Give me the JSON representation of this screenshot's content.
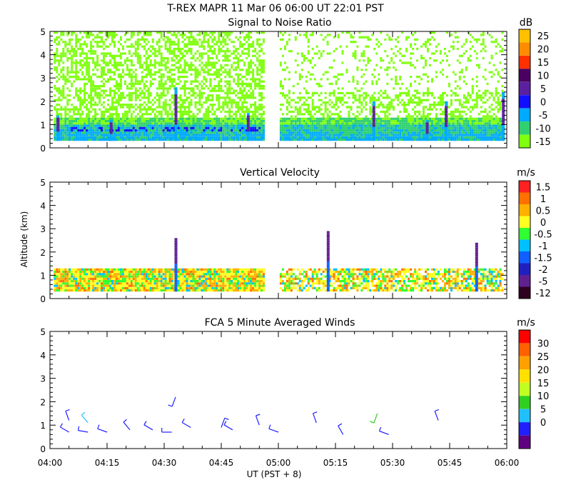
{
  "header": {
    "title": "T-REX   MAPR 11 Mar 06   06:00 UT   22:01   PST"
  },
  "xaxis": {
    "ticks": [
      "04:00",
      "04:15",
      "04:30",
      "04:45",
      "05:00",
      "05:15",
      "05:30",
      "05:45",
      "06:00"
    ],
    "label": "UT  (PST + 8)",
    "ylabel": "Altitude (km)"
  },
  "chart_data": [
    {
      "type": "heatmap",
      "title": "Signal to Noise Ratio",
      "unit": "dB",
      "x_range_min": [
        0,
        120
      ],
      "ylim": [
        0,
        5
      ],
      "yticks": [
        "0",
        "1",
        "2",
        "3",
        "4",
        "5"
      ],
      "data_gap_min": [
        56,
        60
      ],
      "colorbar": {
        "labels": [
          "25",
          "20",
          "15",
          "10",
          "5",
          "0",
          "-5",
          "-10",
          "-15"
        ],
        "colors": [
          "#ffc000",
          "#ff8c00",
          "#ff3000",
          "#4a0060",
          "#5a20a0",
          "#1010ff",
          "#00aaff",
          "#30d070",
          "#80ff10"
        ]
      },
      "columns": [
        {
          "t": 2,
          "top": 1.4
        },
        {
          "t": 16,
          "top": 1.2
        },
        {
          "t": 33,
          "top": 2.6
        },
        {
          "t": 52,
          "top": 1.5
        },
        {
          "t": 85,
          "top": 2.0
        },
        {
          "t": 104,
          "top": 2.0
        },
        {
          "t": 99,
          "top": 1.2
        },
        {
          "t": 119,
          "top": 2.4
        }
      ]
    },
    {
      "type": "heatmap",
      "title": "Vertical Velocity",
      "unit": "m/s",
      "x_range_min": [
        0,
        120
      ],
      "ylim": [
        0,
        5
      ],
      "yticks": [
        "0",
        "1",
        "2",
        "3",
        "4",
        "5"
      ],
      "data_gap_min": [
        56,
        60
      ],
      "colorbar": {
        "labels": [
          "1.5",
          "1",
          "0.5",
          "0",
          "-0.5",
          "-1",
          "-1.5",
          "-2",
          "-5",
          "-12"
        ],
        "colors": [
          "#ff2020",
          "#ff7000",
          "#ffb000",
          "#ffff20",
          "#30ff30",
          "#00c0ff",
          "#1060ff",
          "#2020c0",
          "#602090",
          "#300020"
        ]
      },
      "columns": [
        {
          "t": 33,
          "top": 2.6
        },
        {
          "t": 73,
          "top": 2.9
        },
        {
          "t": 112,
          "top": 2.4
        }
      ]
    },
    {
      "type": "scatter",
      "title": "FCA 5 Minute Averaged Winds",
      "unit": "m/s",
      "x_range_min": [
        0,
        120
      ],
      "ylim": [
        0,
        5
      ],
      "yticks": [
        "0",
        "1",
        "2",
        "3",
        "4",
        "5"
      ],
      "colorbar": {
        "labels": [
          "30",
          "25",
          "20",
          "15",
          "10",
          "5",
          "0"
        ],
        "colors": [
          "#ff0000",
          "#ff6000",
          "#ffa000",
          "#ffe000",
          "#c0ff20",
          "#30d020",
          "#20c0ff",
          "#2020ff",
          "#600080"
        ]
      },
      "barbs": [
        {
          "t": 5,
          "alt": 1.2,
          "dir": 340,
          "speed": 6
        },
        {
          "t": 5,
          "alt": 0.7,
          "dir": 300,
          "speed": 5
        },
        {
          "t": 10,
          "alt": 1.1,
          "dir": 320,
          "speed": 10
        },
        {
          "t": 10,
          "alt": 0.7,
          "dir": 280,
          "speed": 4
        },
        {
          "t": 15,
          "alt": 0.7,
          "dir": 290,
          "speed": 5
        },
        {
          "t": 21,
          "alt": 0.8,
          "dir": 320,
          "speed": 5
        },
        {
          "t": 27,
          "alt": 0.8,
          "dir": 300,
          "speed": 5
        },
        {
          "t": 32,
          "alt": 0.7,
          "dir": 270,
          "speed": 4
        },
        {
          "t": 33,
          "alt": 2.2,
          "dir": 200,
          "speed": 4
        },
        {
          "t": 37,
          "alt": 0.9,
          "dir": 300,
          "speed": 4
        },
        {
          "t": 45,
          "alt": 0.9,
          "dir": 20,
          "speed": 4
        },
        {
          "t": 48,
          "alt": 0.8,
          "dir": 300,
          "speed": 4
        },
        {
          "t": 55,
          "alt": 1.0,
          "dir": 340,
          "speed": 5
        },
        {
          "t": 60,
          "alt": 0.7,
          "dir": 290,
          "speed": 4
        },
        {
          "t": 70,
          "alt": 1.1,
          "dir": 340,
          "speed": 4
        },
        {
          "t": 77,
          "alt": 0.6,
          "dir": 330,
          "speed": 4
        },
        {
          "t": 86,
          "alt": 1.5,
          "dir": 200,
          "speed": 14
        },
        {
          "t": 89,
          "alt": 0.6,
          "dir": 290,
          "speed": 4
        },
        {
          "t": 102,
          "alt": 1.2,
          "dir": 340,
          "speed": 5
        }
      ]
    }
  ]
}
